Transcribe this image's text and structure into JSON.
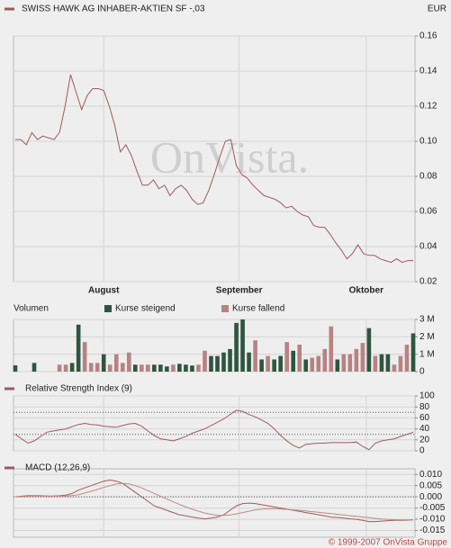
{
  "chart_data": [
    {
      "type": "line",
      "title": "SWISS HAWK AG INHABER-AKTIEN SF -,03",
      "currency": "EUR",
      "watermark": "OnVista.",
      "color": "#a05a5a",
      "grid": true,
      "values": [
        0.101,
        0.101,
        0.098,
        0.105,
        0.101,
        0.103,
        0.102,
        0.101,
        0.105,
        0.12,
        0.138,
        0.128,
        0.118,
        0.126,
        0.13,
        0.13,
        0.129,
        0.12,
        0.109,
        0.094,
        0.098,
        0.092,
        0.083,
        0.075,
        0.075,
        0.078,
        0.073,
        0.075,
        0.069,
        0.073,
        0.075,
        0.072,
        0.067,
        0.064,
        0.065,
        0.072,
        0.081,
        0.091,
        0.1,
        0.101,
        0.086,
        0.081,
        0.079,
        0.075,
        0.072,
        0.069,
        0.068,
        0.067,
        0.065,
        0.062,
        0.063,
        0.06,
        0.058,
        0.057,
        0.052,
        0.051,
        0.051,
        0.047,
        0.042,
        0.038,
        0.033,
        0.036,
        0.041,
        0.036,
        0.035,
        0.035,
        0.033,
        0.032,
        0.031,
        0.033,
        0.031,
        0.032,
        0.032
      ],
      "xlim": [
        0,
        72
      ],
      "xticks": [
        {
          "value": 16,
          "label": "August"
        },
        {
          "value": 40.5,
          "label": "September"
        },
        {
          "value": 63.5,
          "label": "Oktober"
        }
      ],
      "ylim": [
        0.02,
        0.16
      ],
      "yticks": [
        {
          "value": 0.16,
          "label": "0.16"
        },
        {
          "value": 0.14,
          "label": "0.14"
        },
        {
          "value": 0.12,
          "label": "0.12"
        },
        {
          "value": 0.1,
          "label": "0.10"
        },
        {
          "value": 0.08,
          "label": "0.08"
        },
        {
          "value": 0.06,
          "label": "0.06"
        },
        {
          "value": 0.04,
          "label": "0.04"
        },
        {
          "value": 0.02,
          "label": "0.02"
        }
      ]
    },
    {
      "type": "bar",
      "title": "Volumen",
      "grid": true,
      "xlim": [
        0,
        63
      ],
      "ylim": [
        0,
        3000000
      ],
      "yticks": [
        {
          "value": 3000000,
          "label": "3 M"
        },
        {
          "value": 2000000,
          "label": "2 M"
        },
        {
          "value": 1000000,
          "label": "1 M"
        },
        0
      ],
      "series": [
        {
          "name": "Kurse steigend",
          "color": "#2e5540",
          "values": [
            360000,
            null,
            null,
            500000,
            null,
            null,
            null,
            null,
            null,
            500000,
            2700000,
            null,
            null,
            null,
            1000000,
            null,
            null,
            null,
            null,
            400000,
            null,
            null,
            400000,
            400000,
            300000,
            null,
            450000,
            400000,
            350000,
            null,
            null,
            900000,
            900000,
            1100000,
            1300000,
            2800000,
            3000000,
            1100000,
            null,
            700000,
            null,
            700000,
            900000,
            null,
            1200000,
            null,
            700000,
            null,
            null,
            null,
            null,
            700000,
            null,
            null,
            null,
            null,
            2500000,
            null,
            1000000,
            1000000,
            null,
            null,
            null,
            2200000
          ]
        },
        {
          "name": "Kurse fallend",
          "color": "#b88282",
          "values": [
            null,
            null,
            null,
            null,
            null,
            null,
            null,
            400000,
            400000,
            null,
            null,
            1700000,
            500000,
            500000,
            null,
            400000,
            1000000,
            500000,
            1100000,
            null,
            400000,
            400000,
            null,
            null,
            null,
            400000,
            null,
            null,
            null,
            400000,
            1200000,
            null,
            null,
            null,
            null,
            null,
            null,
            null,
            1800000,
            null,
            900000,
            null,
            null,
            1700000,
            null,
            1550000,
            null,
            800000,
            900000,
            1300000,
            2600000,
            null,
            1000000,
            1000000,
            1300000,
            1650000,
            null,
            900000,
            null,
            null,
            400000,
            900000,
            1550000,
            null
          ]
        }
      ]
    },
    {
      "type": "line",
      "title": "Relative Strength Index (9)",
      "color": "#a05a5a",
      "grid": true,
      "xlim": [
        0,
        63
      ],
      "values": [
        30,
        22,
        14,
        18,
        26,
        34,
        36,
        38,
        40,
        44,
        48,
        50,
        48,
        47,
        45,
        44,
        43,
        46,
        49,
        50,
        45,
        36,
        28,
        22,
        20,
        18,
        22,
        26,
        32,
        36,
        40,
        46,
        52,
        58,
        66,
        74,
        72,
        66,
        62,
        56,
        50,
        40,
        28,
        18,
        10,
        5,
        12,
        13,
        14,
        14,
        15,
        15,
        15,
        15,
        16,
        8,
        2,
        14,
        18,
        20,
        22,
        26,
        30,
        34
      ],
      "ylim": [
        0,
        100
      ],
      "yticks": [
        100,
        80,
        60,
        40,
        20,
        0
      ],
      "reference_lines": [
        30,
        70
      ]
    },
    {
      "type": "line",
      "title": "MACD (12,26,9)",
      "color": "#a05a5a",
      "grid": true,
      "xlim": [
        0,
        63
      ],
      "series": [
        {
          "color": "#a05a5a",
          "values": [
            0,
            0.0003,
            0.0005,
            0.0005,
            0.0005,
            0.0004,
            0.0004,
            0.0005,
            0.0008,
            0.0015,
            0.003,
            0.004,
            0.005,
            0.006,
            0.007,
            0.0075,
            0.007,
            0.006,
            0.004,
            0.002,
            0,
            -0.002,
            -0.004,
            -0.005,
            -0.006,
            -0.007,
            -0.008,
            -0.0085,
            -0.009,
            -0.0095,
            -0.0098,
            -0.0095,
            -0.009,
            -0.008,
            -0.006,
            -0.004,
            -0.003,
            -0.0028,
            -0.003,
            -0.0035,
            -0.004,
            -0.0045,
            -0.005,
            -0.0055,
            -0.006,
            -0.0065,
            -0.007,
            -0.0075,
            -0.008,
            -0.0085,
            -0.009,
            -0.0092,
            -0.0095,
            -0.0098,
            -0.01,
            -0.0105,
            -0.011,
            -0.011,
            -0.0108,
            -0.0106,
            -0.0105,
            -0.0105,
            -0.0104,
            -0.0102
          ]
        },
        {
          "color": "#c08888",
          "values": [
            0,
            0.0001,
            0.0002,
            0.0003,
            0.0003,
            0.0003,
            0.0003,
            0.0003,
            0.0004,
            0.0006,
            0.001,
            0.0017,
            0.0025,
            0.0033,
            0.0042,
            0.005,
            0.0058,
            0.006,
            0.0058,
            0.005,
            0.004,
            0.0028,
            0.0015,
            0.0002,
            -0.001,
            -0.0022,
            -0.0034,
            -0.0045,
            -0.0055,
            -0.0064,
            -0.0072,
            -0.0078,
            -0.0082,
            -0.0083,
            -0.0081,
            -0.0076,
            -0.007,
            -0.0064,
            -0.0058,
            -0.0055,
            -0.0053,
            -0.0053,
            -0.0054,
            -0.0056,
            -0.0058,
            -0.006,
            -0.0063,
            -0.0066,
            -0.0069,
            -0.0072,
            -0.0075,
            -0.0078,
            -0.0081,
            -0.0084,
            -0.0087,
            -0.009,
            -0.0093,
            -0.0096,
            -0.0099,
            -0.0101,
            -0.0102,
            -0.0103,
            -0.0103,
            -0.0103
          ]
        }
      ],
      "ylim": [
        -0.018,
        0.0125
      ],
      "yticks": [
        {
          "value": 0.01,
          "label": "0.010"
        },
        {
          "value": 0.005,
          "label": "0.005"
        },
        {
          "value": 0,
          "label": "0.000"
        },
        {
          "value": -0.005,
          "label": "-0.005"
        },
        {
          "value": -0.01,
          "label": "-0.010"
        },
        {
          "value": -0.015,
          "label": "-0.015"
        }
      ],
      "reference_lines": [
        0
      ]
    }
  ],
  "copyright": "© 1999-2007 OnVista Gruppe"
}
